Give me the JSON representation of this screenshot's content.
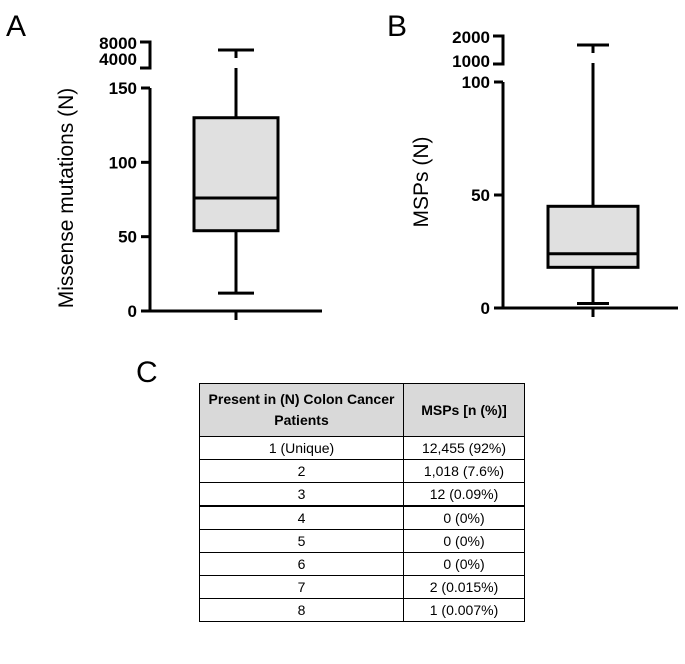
{
  "chart_data": [
    {
      "panel": "A",
      "type": "box",
      "ylabel": "Missense mutations (N)",
      "ylim": [
        0,
        150
      ],
      "broken_axis": {
        "upper_ticks": [
          "8000",
          "4000"
        ],
        "upper_values": [
          8000,
          4000
        ],
        "whisker_max": 6000
      },
      "yticks": [
        "0",
        "50",
        "100",
        "150"
      ],
      "box": {
        "min": 12,
        "q1": 54,
        "median": 76,
        "q3": 130,
        "max": 6000
      }
    },
    {
      "panel": "B",
      "type": "box",
      "ylabel": "MSPs (N)",
      "ylim": [
        0,
        100
      ],
      "broken_axis": {
        "upper_ticks": [
          "2000",
          "1000"
        ],
        "upper_values": [
          2000,
          1000
        ],
        "whisker_max": 1600
      },
      "yticks": [
        "0",
        "50",
        "100"
      ],
      "box": {
        "min": 2,
        "q1": 18,
        "median": 24,
        "q3": 45,
        "max": 1600
      }
    }
  ],
  "table": {
    "letter": "C",
    "header_col1": "Present in (N) Colon Cancer Patients",
    "header_col2": "MSPs [n (%)]",
    "rows": [
      [
        "1 (Unique)",
        "12,455 (92%)"
      ],
      [
        "2",
        "1,018 (7.6%)"
      ],
      [
        "3",
        "12 (0.09%)"
      ],
      [
        "4",
        "0 (0%)"
      ],
      [
        "5",
        "0 (0%)"
      ],
      [
        "6",
        "0 (0%)"
      ],
      [
        "7",
        "2 (0.015%)"
      ],
      [
        "8",
        "1 (0.007%)"
      ]
    ]
  },
  "colors": {
    "box_fill": "#e0e0e0",
    "line": "#000000",
    "header_fill": "#d9d9d9"
  }
}
